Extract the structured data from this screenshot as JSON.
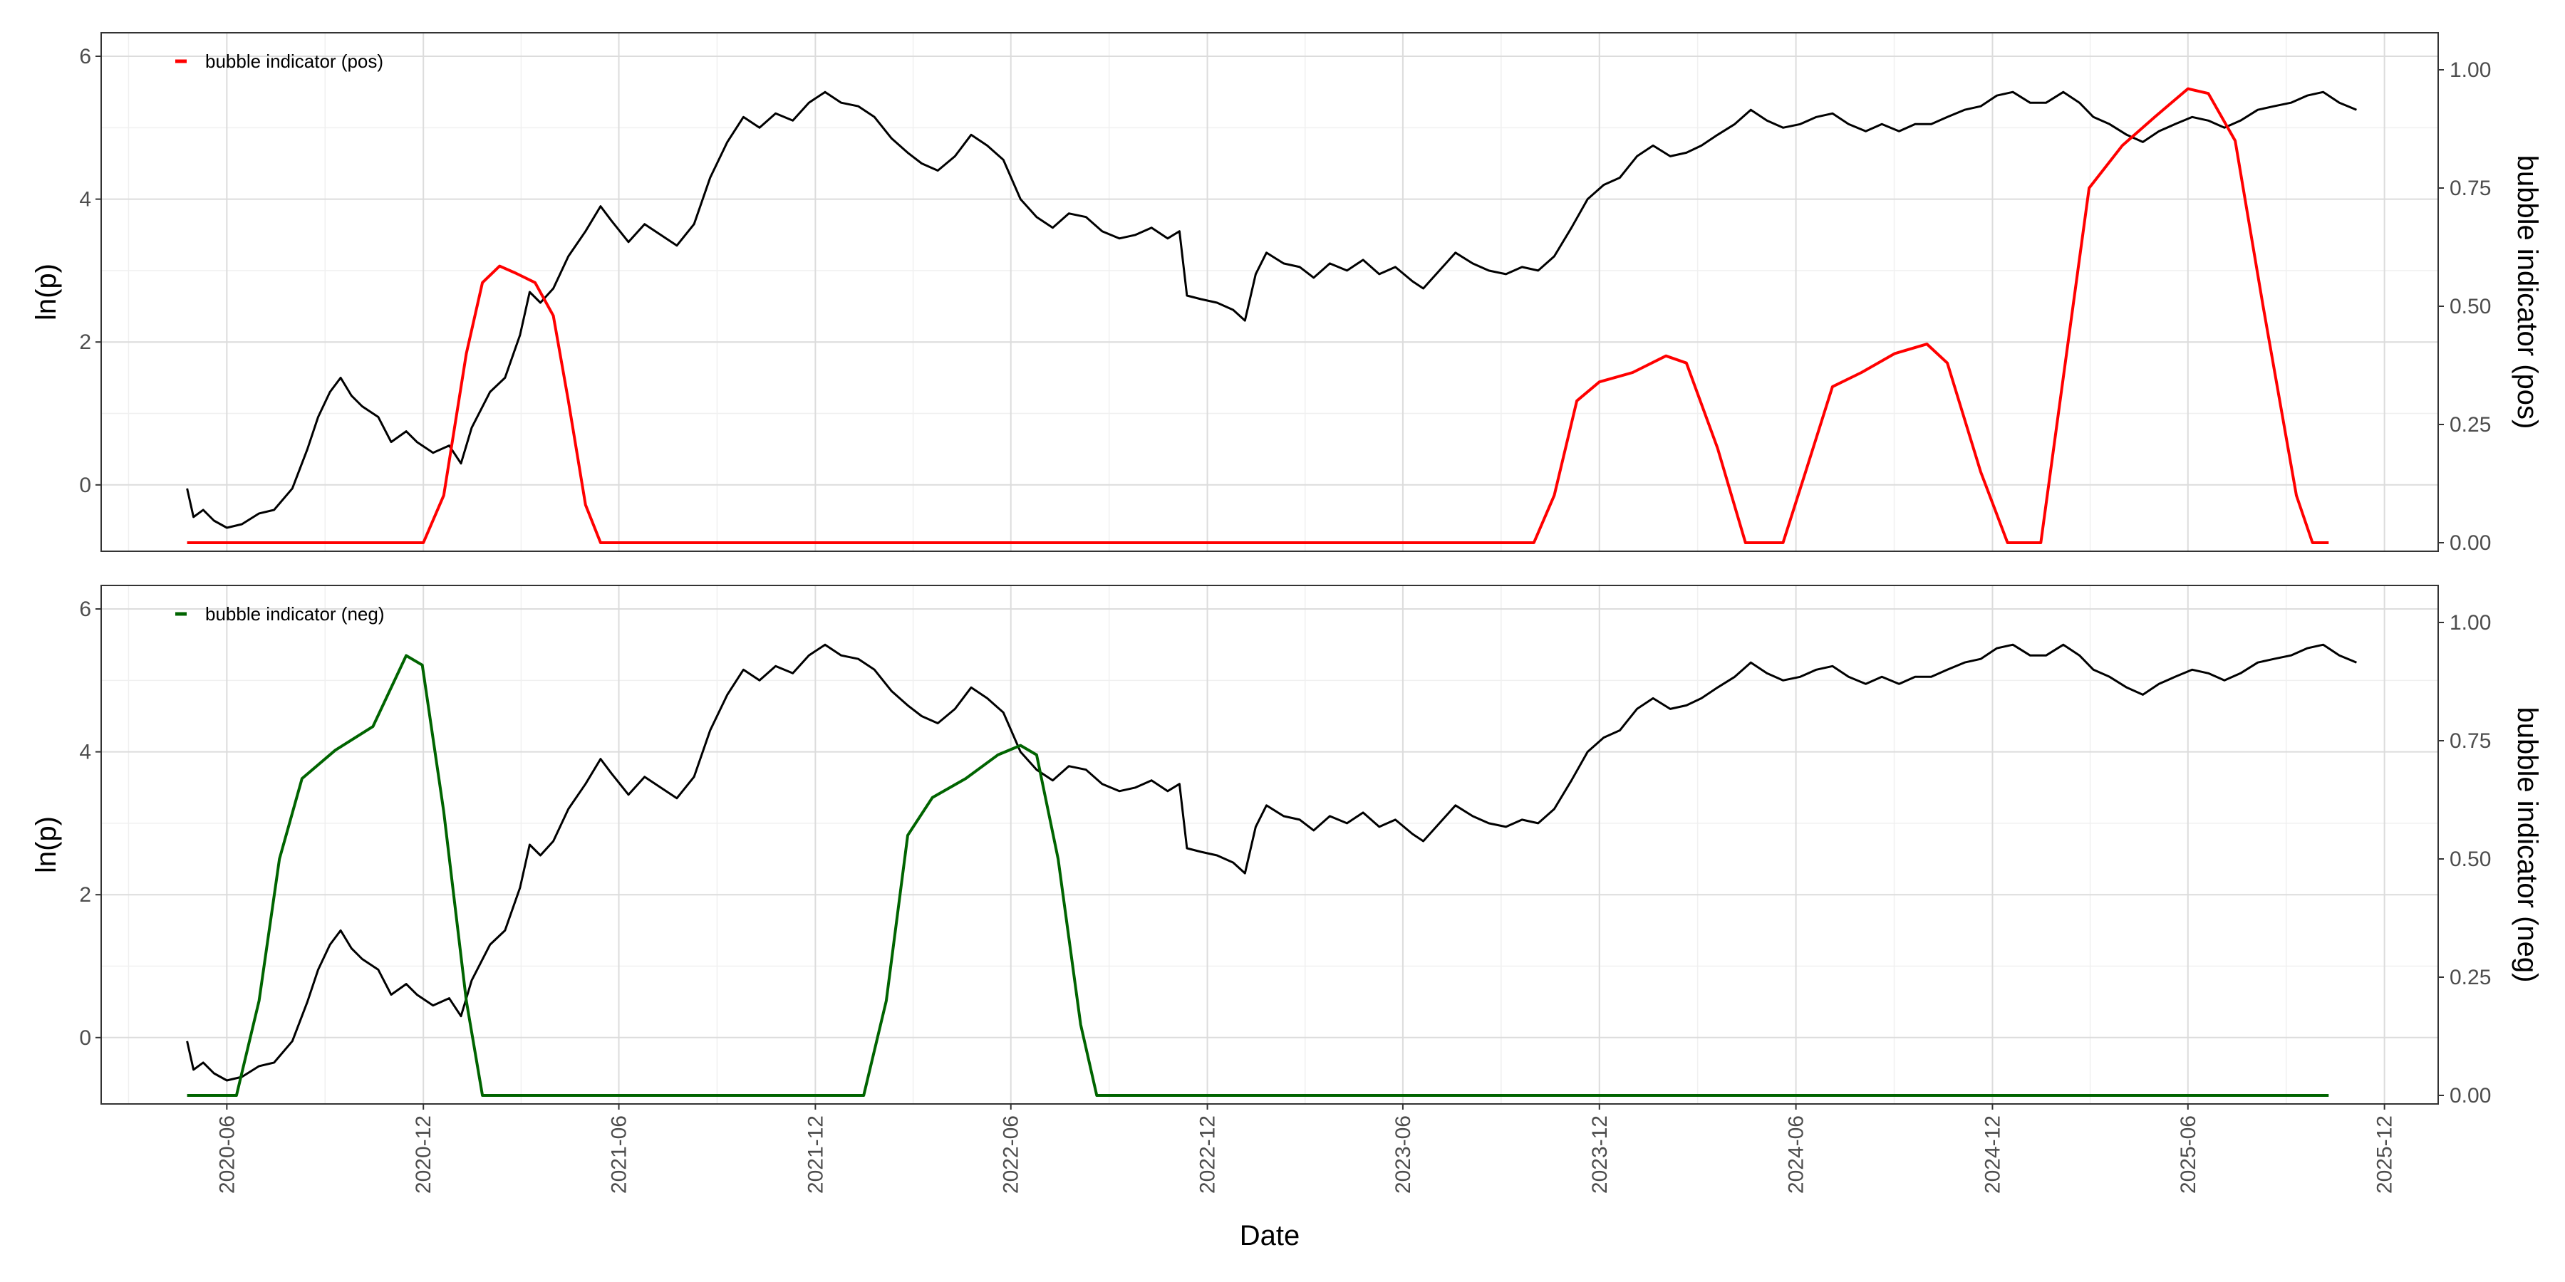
{
  "chart_data": {
    "type": "line",
    "x_axis": {
      "label": "Date",
      "ticks": [
        "2020-06",
        "2020-12",
        "2021-06",
        "2021-12",
        "2022-06",
        "2022-12",
        "2023-06",
        "2023-12",
        "2024-06",
        "2024-12",
        "2025-06",
        "2025-12"
      ]
    },
    "price_series": {
      "name": "ln(p)",
      "color": "#000000",
      "points": [
        [
          "2020-04-25",
          -0.05
        ],
        [
          "2020-05-01",
          -0.45
        ],
        [
          "2020-05-10",
          -0.35
        ],
        [
          "2020-05-20",
          -0.5
        ],
        [
          "2020-06-01",
          -0.6
        ],
        [
          "2020-06-15",
          -0.55
        ],
        [
          "2020-07-01",
          -0.4
        ],
        [
          "2020-07-15",
          -0.35
        ],
        [
          "2020-08-01",
          -0.05
        ],
        [
          "2020-08-15",
          0.5
        ],
        [
          "2020-08-25",
          0.95
        ],
        [
          "2020-09-05",
          1.3
        ],
        [
          "2020-09-15",
          1.5
        ],
        [
          "2020-09-25",
          1.25
        ],
        [
          "2020-10-05",
          1.1
        ],
        [
          "2020-10-20",
          0.95
        ],
        [
          "2020-11-01",
          0.6
        ],
        [
          "2020-11-15",
          0.75
        ],
        [
          "2020-11-25",
          0.6
        ],
        [
          "2020-12-10",
          0.45
        ],
        [
          "2020-12-25",
          0.55
        ],
        [
          "2021-01-05",
          0.3
        ],
        [
          "2021-01-15",
          0.8
        ],
        [
          "2021-02-01",
          1.3
        ],
        [
          "2021-02-15",
          1.5
        ],
        [
          "2021-03-01",
          2.1
        ],
        [
          "2021-03-10",
          2.7
        ],
        [
          "2021-03-20",
          2.55
        ],
        [
          "2021-04-01",
          2.75
        ],
        [
          "2021-04-15",
          3.2
        ],
        [
          "2021-05-01",
          3.55
        ],
        [
          "2021-05-15",
          3.9
        ],
        [
          "2021-05-25",
          3.7
        ],
        [
          "2021-06-10",
          3.4
        ],
        [
          "2021-06-25",
          3.65
        ],
        [
          "2021-07-10",
          3.5
        ],
        [
          "2021-07-25",
          3.35
        ],
        [
          "2021-08-10",
          3.65
        ],
        [
          "2021-08-25",
          4.3
        ],
        [
          "2021-09-10",
          4.8
        ],
        [
          "2021-09-25",
          5.15
        ],
        [
          "2021-10-10",
          5.0
        ],
        [
          "2021-10-25",
          5.2
        ],
        [
          "2021-11-10",
          5.1
        ],
        [
          "2021-11-25",
          5.35
        ],
        [
          "2021-12-10",
          5.5
        ],
        [
          "2021-12-25",
          5.35
        ],
        [
          "2022-01-10",
          5.3
        ],
        [
          "2022-01-25",
          5.15
        ],
        [
          "2022-02-10",
          4.85
        ],
        [
          "2022-02-25",
          4.65
        ],
        [
          "2022-03-10",
          4.5
        ],
        [
          "2022-03-25",
          4.4
        ],
        [
          "2022-04-10",
          4.6
        ],
        [
          "2022-04-25",
          4.9
        ],
        [
          "2022-05-10",
          4.75
        ],
        [
          "2022-05-25",
          4.55
        ],
        [
          "2022-06-10",
          4.0
        ],
        [
          "2022-06-25",
          3.75
        ],
        [
          "2022-07-10",
          3.6
        ],
        [
          "2022-07-25",
          3.8
        ],
        [
          "2022-08-10",
          3.75
        ],
        [
          "2022-08-25",
          3.55
        ],
        [
          "2022-09-10",
          3.45
        ],
        [
          "2022-09-25",
          3.5
        ],
        [
          "2022-10-10",
          3.6
        ],
        [
          "2022-10-25",
          3.45
        ],
        [
          "2022-11-05",
          3.55
        ],
        [
          "2022-11-12",
          2.65
        ],
        [
          "2022-11-25",
          2.6
        ],
        [
          "2022-12-10",
          2.55
        ],
        [
          "2022-12-25",
          2.45
        ],
        [
          "2023-01-05",
          2.3
        ],
        [
          "2023-01-15",
          2.95
        ],
        [
          "2023-01-25",
          3.25
        ],
        [
          "2023-02-10",
          3.1
        ],
        [
          "2023-02-25",
          3.05
        ],
        [
          "2023-03-10",
          2.9
        ],
        [
          "2023-03-25",
          3.1
        ],
        [
          "2023-04-10",
          3.0
        ],
        [
          "2023-04-25",
          3.15
        ],
        [
          "2023-05-10",
          2.95
        ],
        [
          "2023-05-25",
          3.05
        ],
        [
          "2023-06-10",
          2.85
        ],
        [
          "2023-06-20",
          2.75
        ],
        [
          "2023-07-05",
          3.0
        ],
        [
          "2023-07-20",
          3.25
        ],
        [
          "2023-08-05",
          3.1
        ],
        [
          "2023-08-20",
          3.0
        ],
        [
          "2023-09-05",
          2.95
        ],
        [
          "2023-09-20",
          3.05
        ],
        [
          "2023-10-05",
          3.0
        ],
        [
          "2023-10-20",
          3.2
        ],
        [
          "2023-11-05",
          3.6
        ],
        [
          "2023-11-20",
          4.0
        ],
        [
          "2023-12-05",
          4.2
        ],
        [
          "2023-12-20",
          4.3
        ],
        [
          "2024-01-05",
          4.6
        ],
        [
          "2024-01-20",
          4.75
        ],
        [
          "2024-02-05",
          4.6
        ],
        [
          "2024-02-20",
          4.65
        ],
        [
          "2024-03-05",
          4.75
        ],
        [
          "2024-03-20",
          4.9
        ],
        [
          "2024-04-05",
          5.05
        ],
        [
          "2024-04-20",
          5.25
        ],
        [
          "2024-05-05",
          5.1
        ],
        [
          "2024-05-20",
          5.0
        ],
        [
          "2024-06-05",
          5.05
        ],
        [
          "2024-06-20",
          5.15
        ],
        [
          "2024-07-05",
          5.2
        ],
        [
          "2024-07-20",
          5.05
        ],
        [
          "2024-08-05",
          4.95
        ],
        [
          "2024-08-20",
          5.05
        ],
        [
          "2024-09-05",
          4.95
        ],
        [
          "2024-09-20",
          5.05
        ],
        [
          "2024-10-05",
          5.05
        ],
        [
          "2024-10-20",
          5.15
        ],
        [
          "2024-11-05",
          5.25
        ],
        [
          "2024-11-20",
          5.3
        ],
        [
          "2024-12-05",
          5.45
        ],
        [
          "2024-12-20",
          5.5
        ],
        [
          "2025-01-05",
          5.35
        ],
        [
          "2025-01-20",
          5.35
        ],
        [
          "2025-02-05",
          5.5
        ],
        [
          "2025-02-20",
          5.35
        ],
        [
          "2025-03-05",
          5.15
        ],
        [
          "2025-03-20",
          5.05
        ],
        [
          "2025-04-05",
          4.9
        ],
        [
          "2025-04-20",
          4.8
        ],
        [
          "2025-05-05",
          4.95
        ],
        [
          "2025-05-20",
          5.05
        ],
        [
          "2025-06-05",
          5.15
        ],
        [
          "2025-06-20",
          5.1
        ],
        [
          "2025-07-05",
          5.0
        ],
        [
          "2025-07-20",
          5.1
        ],
        [
          "2025-08-05",
          5.25
        ],
        [
          "2025-08-20",
          5.3
        ],
        [
          "2025-09-05",
          5.35
        ],
        [
          "2025-09-20",
          5.45
        ],
        [
          "2025-10-05",
          5.5
        ],
        [
          "2025-10-20",
          5.35
        ],
        [
          "2025-11-05",
          5.25
        ]
      ]
    },
    "panels": [
      {
        "y_left": {
          "label": "ln(p)",
          "ticks": [
            "0",
            "2",
            "4",
            "6"
          ],
          "range": [
            -0.65,
            6.05
          ]
        },
        "y_right": {
          "label": "bubble indicator (pos)",
          "ticks": [
            "0.00",
            "0.25",
            "0.50",
            "0.75",
            "1.00"
          ],
          "range": [
            0,
            1
          ]
        },
        "legend": {
          "label": "bubble indicator (pos)",
          "position": "top-left"
        },
        "indicator": {
          "name": "bubble indicator (pos)",
          "color": "#ff0000",
          "points": [
            [
              "2020-04-25",
              0.0
            ],
            [
              "2020-12-01",
              0.0
            ],
            [
              "2020-12-20",
              0.1
            ],
            [
              "2021-01-10",
              0.4
            ],
            [
              "2021-01-25",
              0.55
            ],
            [
              "2021-02-10",
              0.585
            ],
            [
              "2021-02-25",
              0.57
            ],
            [
              "2021-03-15",
              0.55
            ],
            [
              "2021-04-01",
              0.48
            ],
            [
              "2021-04-15",
              0.3
            ],
            [
              "2021-05-01",
              0.08
            ],
            [
              "2021-05-15",
              0.0
            ],
            [
              "2023-10-01",
              0.0
            ],
            [
              "2023-10-20",
              0.1
            ],
            [
              "2023-11-10",
              0.3
            ],
            [
              "2023-12-01",
              0.34
            ],
            [
              "2024-01-01",
              0.36
            ],
            [
              "2024-02-01",
              0.395
            ],
            [
              "2024-02-20",
              0.38
            ],
            [
              "2024-03-20",
              0.2
            ],
            [
              "2024-04-15",
              0.0
            ],
            [
              "2024-05-20",
              0.0
            ],
            [
              "2024-06-10",
              0.15
            ],
            [
              "2024-07-05",
              0.33
            ],
            [
              "2024-08-01",
              0.36
            ],
            [
              "2024-09-01",
              0.4
            ],
            [
              "2024-10-01",
              0.42
            ],
            [
              "2024-10-20",
              0.38
            ],
            [
              "2024-11-20",
              0.15
            ],
            [
              "2024-12-15",
              0.0
            ],
            [
              "2025-01-15",
              0.0
            ],
            [
              "2025-02-05",
              0.35
            ],
            [
              "2025-03-01",
              0.75
            ],
            [
              "2025-04-01",
              0.84
            ],
            [
              "2025-05-01",
              0.9
            ],
            [
              "2025-06-01",
              0.96
            ],
            [
              "2025-06-20",
              0.95
            ],
            [
              "2025-07-15",
              0.85
            ],
            [
              "2025-08-10",
              0.5
            ],
            [
              "2025-09-10",
              0.1
            ],
            [
              "2025-09-25",
              0.0
            ],
            [
              "2025-10-10",
              0.0
            ]
          ]
        }
      },
      {
        "y_left": {
          "label": "ln(p)",
          "ticks": [
            "0",
            "2",
            "4",
            "6"
          ],
          "range": [
            -0.65,
            6.05
          ]
        },
        "y_right": {
          "label": "bubble indicator (neg)",
          "ticks": [
            "0.00",
            "0.25",
            "0.50",
            "0.75",
            "1.00"
          ],
          "range": [
            0,
            1
          ]
        },
        "legend": {
          "label": "bubble indicator (neg)",
          "position": "top-left"
        },
        "indicator": {
          "name": "bubble indicator (neg)",
          "color": "#006400",
          "points": [
            [
              "2020-04-25",
              0.0
            ],
            [
              "2020-06-10",
              0.0
            ],
            [
              "2020-07-01",
              0.2
            ],
            [
              "2020-07-20",
              0.5
            ],
            [
              "2020-08-10",
              0.67
            ],
            [
              "2020-09-10",
              0.73
            ],
            [
              "2020-10-15",
              0.78
            ],
            [
              "2020-11-15",
              0.93
            ],
            [
              "2020-11-30",
              0.91
            ],
            [
              "2020-12-20",
              0.6
            ],
            [
              "2021-01-10",
              0.2
            ],
            [
              "2021-01-25",
              0.0
            ],
            [
              "2022-01-15",
              0.0
            ],
            [
              "2022-02-05",
              0.2
            ],
            [
              "2022-02-25",
              0.55
            ],
            [
              "2022-03-20",
              0.63
            ],
            [
              "2022-04-20",
              0.67
            ],
            [
              "2022-05-20",
              0.72
            ],
            [
              "2022-06-10",
              0.74
            ],
            [
              "2022-06-25",
              0.72
            ],
            [
              "2022-07-15",
              0.5
            ],
            [
              "2022-08-05",
              0.15
            ],
            [
              "2022-08-20",
              0.0
            ],
            [
              "2025-10-10",
              0.0
            ]
          ]
        }
      }
    ]
  }
}
